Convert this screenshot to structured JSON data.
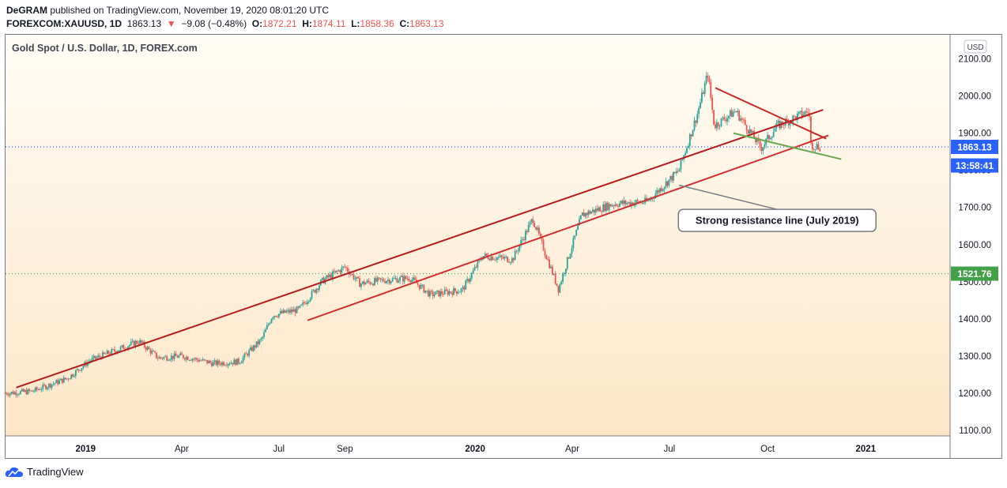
{
  "header": {
    "author": "DeGRAM",
    "published": "published on TradingView.com, November 19, 2020 08:01:20 UTC",
    "symbol": "FOREXCOM:XAUUSD, 1D",
    "last": "1863.13",
    "change": "−9.08 (−0.48%)",
    "o_label": "O:",
    "o_value": "1872.21",
    "h_label": "H:",
    "h_value": "1874.11",
    "l_label": "L:",
    "l_value": "1858.36",
    "c_label": "C:",
    "c_value": "1863.13"
  },
  "chart_data": {
    "type": "candlestick",
    "title": "Gold Spot / U.S. Dollar, 1D, FOREX.com",
    "currency": "USD",
    "y_ticks": [
      1100,
      1200,
      1300,
      1400,
      1500,
      1600,
      1700,
      1800,
      1900,
      2000,
      2100
    ],
    "ylim": [
      1085,
      2165
    ],
    "x_ticks": [
      "2019",
      "Apr",
      "Jul",
      "Sep",
      "2020",
      "Apr",
      "Jul",
      "Oct",
      "2021"
    ],
    "x_tick_dates": [
      "2019-01-01",
      "2019-04-01",
      "2019-07-01",
      "2019-09-01",
      "2020-01-01",
      "2020-04-01",
      "2020-07-01",
      "2020-10-01",
      "2021-01-01"
    ],
    "x_range": [
      "2018-10-18",
      "2021-03-21"
    ],
    "price_points": [
      [
        "2018-10-18",
        1200
      ],
      [
        "2018-11-12",
        1205
      ],
      [
        "2018-12-15",
        1240
      ],
      [
        "2019-01-05",
        1288
      ],
      [
        "2019-02-20",
        1340
      ],
      [
        "2019-03-10",
        1295
      ],
      [
        "2019-04-01",
        1300
      ],
      [
        "2019-05-01",
        1280
      ],
      [
        "2019-05-25",
        1285
      ],
      [
        "2019-06-15",
        1345
      ],
      [
        "2019-06-25",
        1410
      ],
      [
        "2019-07-20",
        1425
      ],
      [
        "2019-08-10",
        1500
      ],
      [
        "2019-09-01",
        1540
      ],
      [
        "2019-09-15",
        1495
      ],
      [
        "2019-10-10",
        1505
      ],
      [
        "2019-11-01",
        1510
      ],
      [
        "2019-11-20",
        1465
      ],
      [
        "2019-12-20",
        1478
      ],
      [
        "2020-01-08",
        1570
      ],
      [
        "2020-02-05",
        1560
      ],
      [
        "2020-02-24",
        1670
      ],
      [
        "2020-03-19",
        1480
      ],
      [
        "2020-04-10",
        1680
      ],
      [
        "2020-05-10",
        1710
      ],
      [
        "2020-06-10",
        1715
      ],
      [
        "2020-07-10",
        1800
      ],
      [
        "2020-07-27",
        1950
      ],
      [
        "2020-08-06",
        2060
      ],
      [
        "2020-08-12",
        1920
      ],
      [
        "2020-09-01",
        1960
      ],
      [
        "2020-09-25",
        1860
      ],
      [
        "2020-10-10",
        1920
      ],
      [
        "2020-11-09",
        1960
      ],
      [
        "2020-11-10",
        1870
      ],
      [
        "2020-11-19",
        1863
      ]
    ],
    "trend_lines": [
      {
        "color": "#b71c1c",
        "from": [
          "2018-10-28",
          1215
        ],
        "to": [
          "2020-11-22",
          1963
        ]
      },
      {
        "color": "#d32f2f",
        "from": [
          "2019-07-28",
          1396
        ],
        "to": [
          "2020-11-27",
          1894
        ]
      },
      {
        "color": "#c62828",
        "from": [
          "2020-08-13",
          2022
        ],
        "to": [
          "2020-11-25",
          1885
        ]
      },
      {
        "color": "#6aa84f",
        "from": [
          "2020-08-30",
          1900
        ],
        "to": [
          "2020-12-09",
          1830
        ]
      }
    ],
    "horizontal_lines": [
      {
        "price": 1863.13,
        "color": "#2962ff",
        "style": "dotted"
      },
      {
        "price": 1521.76,
        "color": "#43a047",
        "style": "dotted"
      }
    ],
    "price_labels": [
      {
        "text": "1863.13",
        "price": 1863.13,
        "color": "#2962ff"
      },
      {
        "text": "13:58:41",
        "price": 1813,
        "color": "#2962ff"
      },
      {
        "text": "1521.76",
        "price": 1521.76,
        "color": "#43a047"
      }
    ],
    "annotation": {
      "text": "Strong resistance line (July 2019)",
      "target": [
        "2020-07-10",
        1760
      ],
      "anchor": [
        "2020-10-10",
        1665
      ]
    }
  },
  "footer": {
    "brand": "TradingView"
  }
}
